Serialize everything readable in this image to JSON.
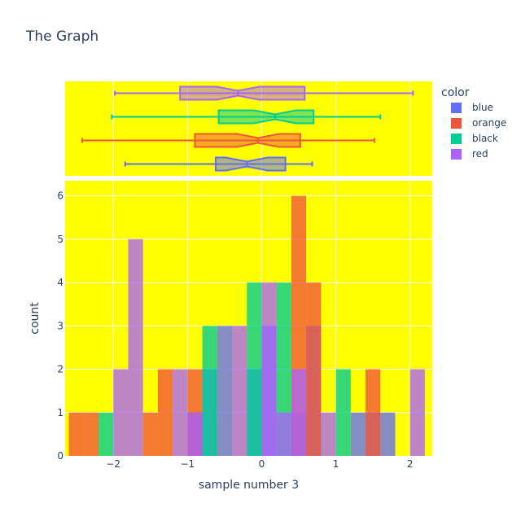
{
  "colors": {
    "plot_bg": "#ffff00",
    "grid": "#ffffff",
    "text": "#2a3f5f"
  },
  "chart_data": {
    "type": "histogram with marginal box plots",
    "title": "The Graph",
    "xlabel": "sample number 3",
    "ylabel": "count",
    "xlim": [
      -2.65,
      2.3
    ],
    "ylim": [
      0,
      6.35
    ],
    "x_ticks": [
      -2,
      -1,
      0,
      1,
      2
    ],
    "x_tick_labels": [
      "−2",
      "−1",
      "0",
      "1",
      "2"
    ],
    "y_ticks": [
      0,
      1,
      2,
      3,
      4,
      5,
      6
    ],
    "y_tick_labels": [
      "0",
      "1",
      "2",
      "3",
      "4",
      "5",
      "6"
    ],
    "bin_width": 0.2,
    "barmode": "overlay",
    "legend": {
      "title": "color",
      "placement": "right"
    },
    "series": [
      {
        "name": "blue",
        "color": "#636efa",
        "bins": [
          {
            "x0": -1.0,
            "count": 1
          },
          {
            "x0": -0.8,
            "count": 2
          },
          {
            "x0": -0.6,
            "count": 3
          },
          {
            "x0": -0.2,
            "count": 2
          },
          {
            "x0": 0.0,
            "count": 3
          },
          {
            "x0": 0.4,
            "count": 1
          },
          {
            "x0": 0.6,
            "count": 3
          },
          {
            "x0": 1.2,
            "count": 1
          },
          {
            "x0": 1.4,
            "count": 1
          },
          {
            "x0": 1.6,
            "count": 1
          }
        ],
        "box": {
          "min": -1.84,
          "q1": -0.62,
          "median": -0.2,
          "q3": 0.32,
          "max": 0.68
        }
      },
      {
        "name": "orange",
        "color": "#ef553b",
        "bins": [
          {
            "x0": -2.6,
            "count": 1
          },
          {
            "x0": -2.4,
            "count": 1
          },
          {
            "x0": -1.6,
            "count": 1
          },
          {
            "x0": -1.4,
            "count": 2
          },
          {
            "x0": -1.0,
            "count": 2
          },
          {
            "x0": 0.4,
            "count": 6
          },
          {
            "x0": 0.6,
            "count": 4
          },
          {
            "x0": 1.4,
            "count": 2
          }
        ],
        "box": {
          "min": -2.42,
          "q1": -0.9,
          "median": -0.05,
          "q3": 0.52,
          "max": 1.52
        }
      },
      {
        "name": "black",
        "color": "#00cc96",
        "bins": [
          {
            "x0": -2.2,
            "count": 1
          },
          {
            "x0": -0.8,
            "count": 3
          },
          {
            "x0": -0.2,
            "count": 4
          },
          {
            "x0": 0.2,
            "count": 4
          },
          {
            "x0": 1.0,
            "count": 2
          }
        ],
        "box": {
          "min": -2.02,
          "q1": -0.58,
          "median": 0.18,
          "q3": 0.7,
          "max": 1.6
        }
      },
      {
        "name": "red",
        "color": "#ab63fa",
        "bins": [
          {
            "x0": -2.0,
            "count": 2
          },
          {
            "x0": -1.8,
            "count": 5
          },
          {
            "x0": -1.2,
            "count": 2
          },
          {
            "x0": -1.0,
            "count": 1
          },
          {
            "x0": -0.4,
            "count": 3
          },
          {
            "x0": 0.0,
            "count": 4
          },
          {
            "x0": 0.2,
            "count": 1
          },
          {
            "x0": 0.4,
            "count": 2
          },
          {
            "x0": 0.8,
            "count": 1
          },
          {
            "x0": 2.0,
            "count": 2
          }
        ],
        "box": {
          "min": -1.98,
          "q1": -1.1,
          "median": -0.32,
          "q3": 0.58,
          "max": 2.04
        }
      }
    ]
  }
}
